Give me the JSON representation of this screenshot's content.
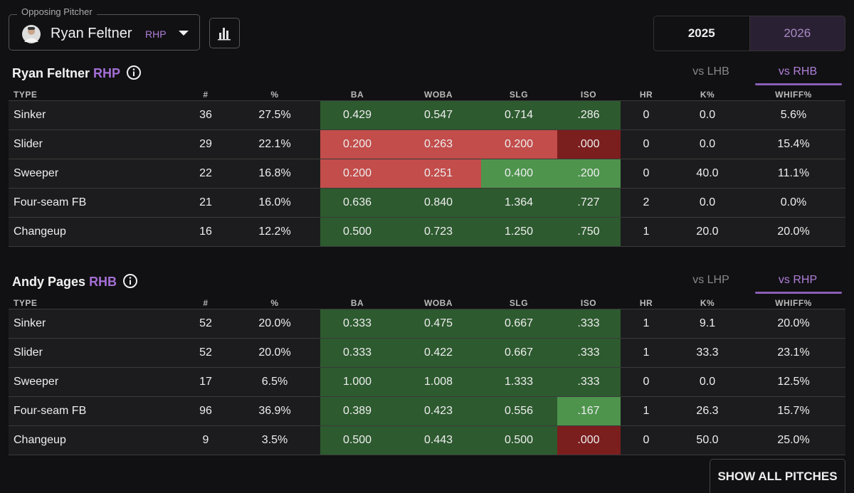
{
  "pitcher_select": {
    "label": "Opposing Pitcher",
    "name": "Ryan Feltner",
    "hand": "RHP"
  },
  "years": [
    "2025",
    "2026"
  ],
  "selected_year": "2026",
  "button": "SHOW ALL PITCHES",
  "tables": [
    {
      "name": "Ryan Feltner",
      "hand": "RHP",
      "tabs": [
        "vs LHB",
        "vs RHB"
      ],
      "selected_tab": "vs RHB",
      "columns": [
        "TYPE",
        "#",
        "%",
        "BA",
        "WOBA",
        "SLG",
        "ISO",
        "HR",
        "K%",
        "WHIFF%"
      ],
      "rows": [
        [
          "Sinker",
          "36",
          "27.5%",
          "0.429",
          "0.547",
          "0.714",
          ".286",
          "0",
          "0.0",
          "5.6%"
        ],
        [
          "Slider",
          "29",
          "22.1%",
          "0.200",
          "0.263",
          "0.200",
          ".000",
          "0",
          "0.0",
          "15.4%"
        ],
        [
          "Sweeper",
          "22",
          "16.8%",
          "0.200",
          "0.251",
          "0.400",
          ".200",
          "0",
          "40.0",
          "11.1%"
        ],
        [
          "Four-seam FB",
          "21",
          "16.0%",
          "0.636",
          "0.840",
          "1.364",
          ".727",
          "2",
          "0.0",
          "0.0%"
        ],
        [
          "Changeup",
          "16",
          "12.2%",
          "0.500",
          "0.723",
          "1.250",
          ".750",
          "1",
          "20.0",
          "20.0%"
        ]
      ],
      "cell_colors": [
        [
          "#2d5a2f",
          "#2d5a2f",
          "#2d5a2f",
          "#2d5a2f"
        ],
        [
          "#c24d4b",
          "#c24d4b",
          "#c24d4b",
          "#7b1e1e"
        ],
        [
          "#c24d4b",
          "#c24d4b",
          "#4e944d",
          "#4e944d"
        ],
        [
          "#2d5a2f",
          "#2d5a2f",
          "#2d5a2f",
          "#2d5a2f"
        ],
        [
          "#2d5a2f",
          "#2d5a2f",
          "#2d5a2f",
          "#2d5a2f"
        ]
      ]
    },
    {
      "name": "Andy Pages",
      "hand": "RHB",
      "tabs": [
        "vs LHP",
        "vs RHP"
      ],
      "selected_tab": "vs RHP",
      "columns": [
        "TYPE",
        "#",
        "%",
        "BA",
        "WOBA",
        "SLG",
        "ISO",
        "HR",
        "K%",
        "WHIFF%"
      ],
      "rows": [
        [
          "Sinker",
          "52",
          "20.0%",
          "0.333",
          "0.475",
          "0.667",
          ".333",
          "1",
          "9.1",
          "20.0%"
        ],
        [
          "Slider",
          "52",
          "20.0%",
          "0.333",
          "0.422",
          "0.667",
          ".333",
          "1",
          "33.3",
          "23.1%"
        ],
        [
          "Sweeper",
          "17",
          "6.5%",
          "1.000",
          "1.008",
          "1.333",
          ".333",
          "0",
          "0.0",
          "12.5%"
        ],
        [
          "Four-seam FB",
          "96",
          "36.9%",
          "0.389",
          "0.423",
          "0.556",
          ".167",
          "1",
          "26.3",
          "15.7%"
        ],
        [
          "Changeup",
          "9",
          "3.5%",
          "0.500",
          "0.443",
          "0.500",
          ".000",
          "0",
          "50.0",
          "25.0%"
        ]
      ],
      "cell_colors": [
        [
          "#2d5a2f",
          "#2d5a2f",
          "#2d5a2f",
          "#2d5a2f"
        ],
        [
          "#2d5a2f",
          "#2d5a2f",
          "#2d5a2f",
          "#2d5a2f"
        ],
        [
          "#2d5a2f",
          "#2d5a2f",
          "#2d5a2f",
          "#2d5a2f"
        ],
        [
          "#2d5a2f",
          "#2d5a2f",
          "#2d5a2f",
          "#4e944d"
        ],
        [
          "#2d5a2f",
          "#2d5a2f",
          "#2d5a2f",
          "#7b1e1e"
        ]
      ]
    }
  ]
}
